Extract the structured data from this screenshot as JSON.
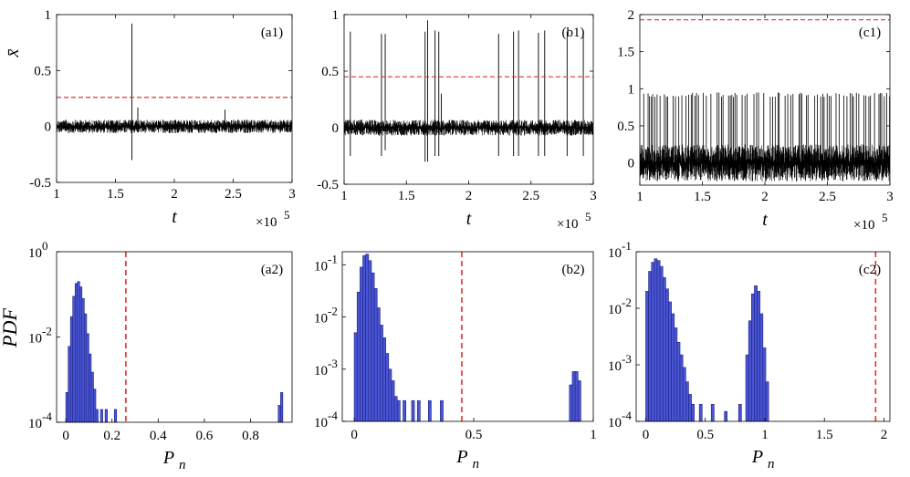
{
  "figure": {
    "time_multiplier": "×10",
    "time_exponent": "5"
  },
  "chart_data": [
    {
      "id": "a1",
      "type": "line",
      "panel_label": "(a1)",
      "xlabel": "t",
      "ylabel": "x̄",
      "xlim": [
        1,
        3
      ],
      "ylim": [
        -0.5,
        1
      ],
      "xticks": [
        "1",
        "1.5",
        "2",
        "2.5",
        "3"
      ],
      "yticks": [
        "-0.5",
        "0",
        "0.5",
        "1"
      ],
      "x_multiplier": "×10^5",
      "noise_band": [
        -0.06,
        0.06
      ],
      "threshold": 0.26,
      "spikes": [
        {
          "x": 1.64,
          "top": 0.92,
          "bottom": -0.3
        },
        {
          "x": 1.69,
          "top": 0.17,
          "bottom": -0.05
        },
        {
          "x": 2.43,
          "top": 0.15,
          "bottom": -0.05
        }
      ]
    },
    {
      "id": "b1",
      "type": "line",
      "panel_label": "(b1)",
      "xlabel": "t",
      "ylabel": "",
      "xlim": [
        1,
        3
      ],
      "ylim": [
        -0.5,
        1
      ],
      "xticks": [
        "1",
        "1.5",
        "2",
        "2.5",
        "3"
      ],
      "yticks": [
        "-0.5",
        "0",
        "0.5",
        "1"
      ],
      "x_multiplier": "×10^5",
      "noise_band": [
        -0.07,
        0.07
      ],
      "threshold": 0.45,
      "spikes": [
        {
          "x": 1.05,
          "top": 0.85,
          "bottom": -0.25
        },
        {
          "x": 1.3,
          "top": 0.83,
          "bottom": -0.25
        },
        {
          "x": 1.33,
          "top": 0.83,
          "bottom": -0.2
        },
        {
          "x": 1.65,
          "top": 0.85,
          "bottom": -0.3
        },
        {
          "x": 1.67,
          "top": 0.95,
          "bottom": -0.3
        },
        {
          "x": 1.73,
          "top": 0.86,
          "bottom": -0.25
        },
        {
          "x": 1.76,
          "top": 0.85,
          "bottom": -0.25
        },
        {
          "x": 1.78,
          "top": 0.3,
          "bottom": -0.05
        },
        {
          "x": 2.24,
          "top": 0.83,
          "bottom": -0.25
        },
        {
          "x": 2.36,
          "top": 0.85,
          "bottom": -0.25
        },
        {
          "x": 2.4,
          "top": 0.86,
          "bottom": -0.25
        },
        {
          "x": 2.56,
          "top": 0.84,
          "bottom": -0.25
        },
        {
          "x": 2.61,
          "top": 0.86,
          "bottom": -0.25
        },
        {
          "x": 2.79,
          "top": 0.85,
          "bottom": -0.25
        },
        {
          "x": 2.92,
          "top": 0.86,
          "bottom": -0.25
        }
      ]
    },
    {
      "id": "c1",
      "type": "line",
      "panel_label": "(c1)",
      "xlabel": "t",
      "ylabel": "",
      "xlim": [
        1,
        3
      ],
      "ylim": [
        -0.3,
        2
      ],
      "xticks": [
        "1",
        "1.5",
        "2",
        "2.5",
        "3"
      ],
      "yticks": [
        "0",
        "0.5",
        "1",
        "1.5",
        "2"
      ],
      "x_multiplier": "×10^5",
      "noise_band": [
        -0.25,
        0.25
      ],
      "spike_level": 0.95,
      "threshold": 1.93
    },
    {
      "id": "a2",
      "type": "bar",
      "panel_label": "(a2)",
      "xlabel": "Pn",
      "ylabel": "PDF",
      "yscale": "log",
      "xlim": [
        -0.04,
        0.98
      ],
      "ylim_exp": [
        -4,
        0
      ],
      "xticks": [
        0,
        0.2,
        0.4,
        0.6,
        0.8
      ],
      "xtick_labels": [
        "0",
        "0.2",
        "0.4",
        "0.6",
        "0.8"
      ],
      "yticks": [
        {
          "base": "10",
          "exp": "0"
        },
        {
          "base": "10",
          "exp": "-2"
        },
        {
          "base": "10",
          "exp": "-4"
        }
      ],
      "threshold": 0.26,
      "bin_width": 0.01,
      "bins": [
        [
          0.0,
          0.0005
        ],
        [
          0.01,
          0.006
        ],
        [
          0.02,
          0.03
        ],
        [
          0.03,
          0.09
        ],
        [
          0.04,
          0.18
        ],
        [
          0.05,
          0.2
        ],
        [
          0.06,
          0.15
        ],
        [
          0.07,
          0.08
        ],
        [
          0.08,
          0.035
        ],
        [
          0.09,
          0.012
        ],
        [
          0.1,
          0.004
        ],
        [
          0.11,
          0.0015
        ],
        [
          0.12,
          0.0006
        ],
        [
          0.13,
          0.0002
        ],
        [
          0.15,
          0.0002
        ],
        [
          0.17,
          0.0002
        ],
        [
          0.21,
          0.0002
        ],
        [
          0.92,
          0.00025
        ],
        [
          0.93,
          0.0005
        ]
      ]
    },
    {
      "id": "b2",
      "type": "bar",
      "panel_label": "(b2)",
      "xlabel": "Pn",
      "ylabel": "",
      "yscale": "log",
      "xlim": [
        -0.05,
        1
      ],
      "ylim_exp": [
        -4,
        -0.75
      ],
      "xticks": [
        0,
        0.5,
        1
      ],
      "xtick_labels": [
        "0",
        "0.5",
        "1"
      ],
      "yticks": [
        {
          "base": "10",
          "exp": "-1"
        },
        {
          "base": "10",
          "exp": "-2"
        },
        {
          "base": "10",
          "exp": "-3"
        },
        {
          "base": "10",
          "exp": "-4"
        }
      ],
      "threshold": 0.45,
      "bin_width": 0.012,
      "bins": [
        [
          0.0,
          0.005
        ],
        [
          0.012,
          0.03
        ],
        [
          0.024,
          0.09
        ],
        [
          0.036,
          0.15
        ],
        [
          0.048,
          0.16
        ],
        [
          0.06,
          0.12
        ],
        [
          0.072,
          0.07
        ],
        [
          0.084,
          0.035
        ],
        [
          0.096,
          0.015
        ],
        [
          0.108,
          0.007
        ],
        [
          0.12,
          0.004
        ],
        [
          0.132,
          0.002
        ],
        [
          0.144,
          0.001
        ],
        [
          0.156,
          0.0006
        ],
        [
          0.168,
          0.0003
        ],
        [
          0.18,
          0.00025
        ],
        [
          0.204,
          0.00025
        ],
        [
          0.24,
          0.00025
        ],
        [
          0.264,
          0.00025
        ],
        [
          0.31,
          0.00025
        ],
        [
          0.36,
          0.00025
        ],
        [
          0.9,
          0.0005
        ],
        [
          0.912,
          0.0009
        ],
        [
          0.924,
          0.0009
        ],
        [
          0.936,
          0.0006
        ]
      ]
    },
    {
      "id": "c2",
      "type": "bar",
      "panel_label": "(c2)",
      "xlabel": "Pn",
      "ylabel": "",
      "yscale": "log",
      "xlim": [
        -0.08,
        2.05
      ],
      "ylim_exp": [
        -4,
        -1
      ],
      "xticks": [
        0,
        0.5,
        1,
        1.5,
        2
      ],
      "xtick_labels": [
        "0",
        "0.5",
        "1",
        "1.5",
        "2"
      ],
      "yticks": [
        {
          "base": "10",
          "exp": "-1"
        },
        {
          "base": "10",
          "exp": "-2"
        },
        {
          "base": "10",
          "exp": "-3"
        },
        {
          "base": "10",
          "exp": "-4"
        }
      ],
      "threshold": 1.93,
      "bin_width": 0.024,
      "bins": [
        [
          0.0,
          0.02
        ],
        [
          0.024,
          0.045
        ],
        [
          0.048,
          0.065
        ],
        [
          0.072,
          0.075
        ],
        [
          0.096,
          0.07
        ],
        [
          0.12,
          0.055
        ],
        [
          0.144,
          0.035
        ],
        [
          0.168,
          0.022
        ],
        [
          0.192,
          0.013
        ],
        [
          0.216,
          0.008
        ],
        [
          0.24,
          0.0045
        ],
        [
          0.264,
          0.0025
        ],
        [
          0.288,
          0.0015
        ],
        [
          0.312,
          0.0009
        ],
        [
          0.336,
          0.0005
        ],
        [
          0.36,
          0.0003
        ],
        [
          0.384,
          0.0002
        ],
        [
          0.45,
          0.0002
        ],
        [
          0.55,
          0.0002
        ],
        [
          0.66,
          0.00015
        ],
        [
          0.78,
          0.0002
        ],
        [
          0.84,
          0.0015
        ],
        [
          0.864,
          0.006
        ],
        [
          0.888,
          0.018
        ],
        [
          0.912,
          0.025
        ],
        [
          0.936,
          0.02
        ],
        [
          0.96,
          0.008
        ],
        [
          0.984,
          0.002
        ],
        [
          1.008,
          0.0005
        ]
      ]
    }
  ]
}
